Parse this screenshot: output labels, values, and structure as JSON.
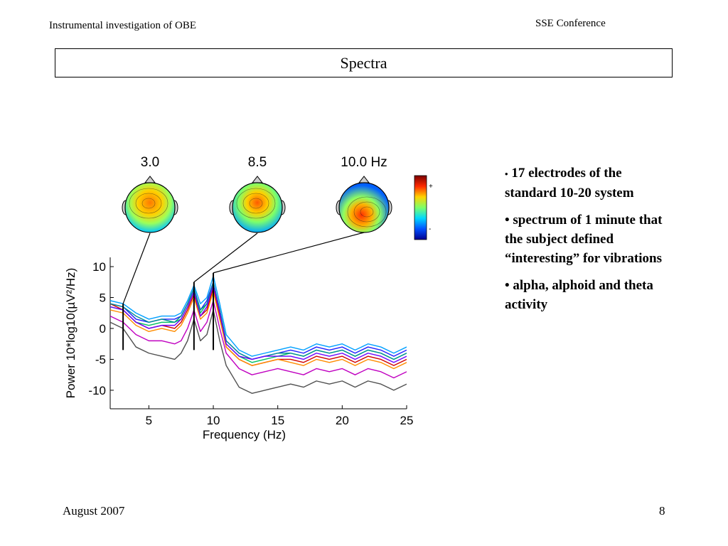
{
  "header": {
    "left": "Instrumental investigation of OBE",
    "right": "SSE Conference"
  },
  "slide": {
    "title": "Spectra"
  },
  "bullets": [
    "17 electrodes of the standard 10-20 system",
    "spectrum of 1 minute that the subject defined “interesting” for vibrations",
    "alpha, alphoid and theta activity"
  ],
  "footer": {
    "left": "August 2007",
    "right": "8"
  },
  "colorbar": {
    "plus": "+",
    "minus": "-",
    "colors": [
      "#7a0000",
      "#ff2a00",
      "#ffd400",
      "#7dff6a",
      "#00d8ff",
      "#0050ff",
      "#00008f"
    ]
  },
  "chart_data": {
    "type": "line",
    "ylabel": "Power 10*log10(µV²/Hz)",
    "xlabel": "Frequency (Hz)",
    "xlim": [
      2,
      25
    ],
    "ylim": [
      -13,
      11.5
    ],
    "xticks": [
      5,
      10,
      15,
      20,
      25
    ],
    "yticks": [
      10,
      5,
      0,
      -5,
      -10
    ],
    "markers_hz": [
      3.0,
      8.5,
      10.0
    ],
    "topomap_labels": [
      "3.0",
      "8.5",
      "10.0 Hz"
    ],
    "x": [
      2,
      3,
      4,
      5,
      6,
      7,
      7.5,
      8,
      8.5,
      9,
      9.5,
      10,
      10.5,
      11,
      12,
      13,
      14,
      15,
      16,
      17,
      18,
      19,
      20,
      21,
      22,
      23,
      24,
      25
    ],
    "series": [
      {
        "color": "#1f1fff",
        "values": [
          4,
          3.5,
          1.5,
          1,
          1.5,
          1.5,
          2,
          4,
          6.5,
          3,
          4.5,
          7.5,
          3,
          -2,
          -4,
          -5,
          -4.5,
          -4,
          -3.5,
          -4,
          -3,
          -3.5,
          -3,
          -4,
          -3,
          -3.5,
          -4.5,
          -3.5
        ]
      },
      {
        "color": "#00a0ff",
        "values": [
          4.5,
          4,
          2.5,
          1.5,
          2,
          2,
          2.5,
          4.5,
          7,
          4,
          5,
          8.5,
          4,
          -1,
          -3.5,
          -4.5,
          -4,
          -3.5,
          -3,
          -3.5,
          -2.5,
          -3,
          -2.5,
          -3.5,
          -2.5,
          -3,
          -4,
          -3
        ]
      },
      {
        "color": "#00c060",
        "values": [
          3.5,
          3,
          1,
          0.5,
          1,
          1,
          1.5,
          3.5,
          6,
          2.5,
          4,
          7,
          2.5,
          -2.5,
          -4.5,
          -5.5,
          -5,
          -4.5,
          -4,
          -4.5,
          -3.5,
          -4,
          -3.5,
          -4.5,
          -3.5,
          -4,
          -5,
          -4
        ]
      },
      {
        "color": "#d00000",
        "values": [
          4,
          3,
          1,
          0,
          0.5,
          0,
          1,
          3,
          5.5,
          2,
          3,
          6.5,
          2,
          -3,
          -5,
          -6,
          -5.5,
          -5,
          -5,
          -5.5,
          -4.5,
          -5,
          -4.5,
          -5.5,
          -4.5,
          -5,
          -6,
          -5
        ]
      },
      {
        "color": "#c000c0",
        "values": [
          2,
          1,
          -1,
          -2,
          -2,
          -2.5,
          -2,
          0,
          3,
          -0.5,
          1,
          4.5,
          0,
          -4,
          -6.5,
          -7.5,
          -7,
          -6.5,
          -7,
          -7.5,
          -6.5,
          -7,
          -6.5,
          -7.5,
          -6.5,
          -7,
          -8,
          -7
        ]
      },
      {
        "color": "#505050",
        "values": [
          1,
          0,
          -3,
          -4,
          -4.5,
          -5,
          -4,
          -2,
          1.5,
          -2,
          -1,
          3,
          -2,
          -6,
          -9.5,
          -10.5,
          -10,
          -9.5,
          -9,
          -9.5,
          -8.5,
          -9,
          -8.5,
          -9.5,
          -8.5,
          -9,
          -10,
          -9
        ]
      },
      {
        "color": "#ff8c00",
        "values": [
          3,
          2.5,
          0.5,
          -0.5,
          0,
          -0.5,
          0.5,
          2.5,
          5,
          1.5,
          2.5,
          6,
          1.5,
          -3,
          -5,
          -6,
          -5.5,
          -5,
          -5.5,
          -6,
          -5,
          -5.5,
          -5,
          -6,
          -5,
          -5.5,
          -6.5,
          -5.5
        ]
      },
      {
        "color": "#009090",
        "values": [
          4,
          3.5,
          2,
          1,
          1.5,
          1,
          2,
          4,
          6.5,
          3,
          4,
          7.5,
          3,
          -2,
          -4,
          -5,
          -4.5,
          -4,
          -4,
          -4.5,
          -3.5,
          -4,
          -3.5,
          -4.5,
          -3.5,
          -4,
          -5,
          -4
        ]
      },
      {
        "color": "#6a00ff",
        "values": [
          3.5,
          3,
          1,
          0,
          0.5,
          0.5,
          1.5,
          3.5,
          6,
          2,
          3.5,
          7,
          2.5,
          -2.5,
          -4.5,
          -5,
          -4.5,
          -4.5,
          -4.5,
          -5,
          -4,
          -4.5,
          -4,
          -5,
          -4,
          -4.5,
          -5.5,
          -4.5
        ]
      }
    ]
  }
}
